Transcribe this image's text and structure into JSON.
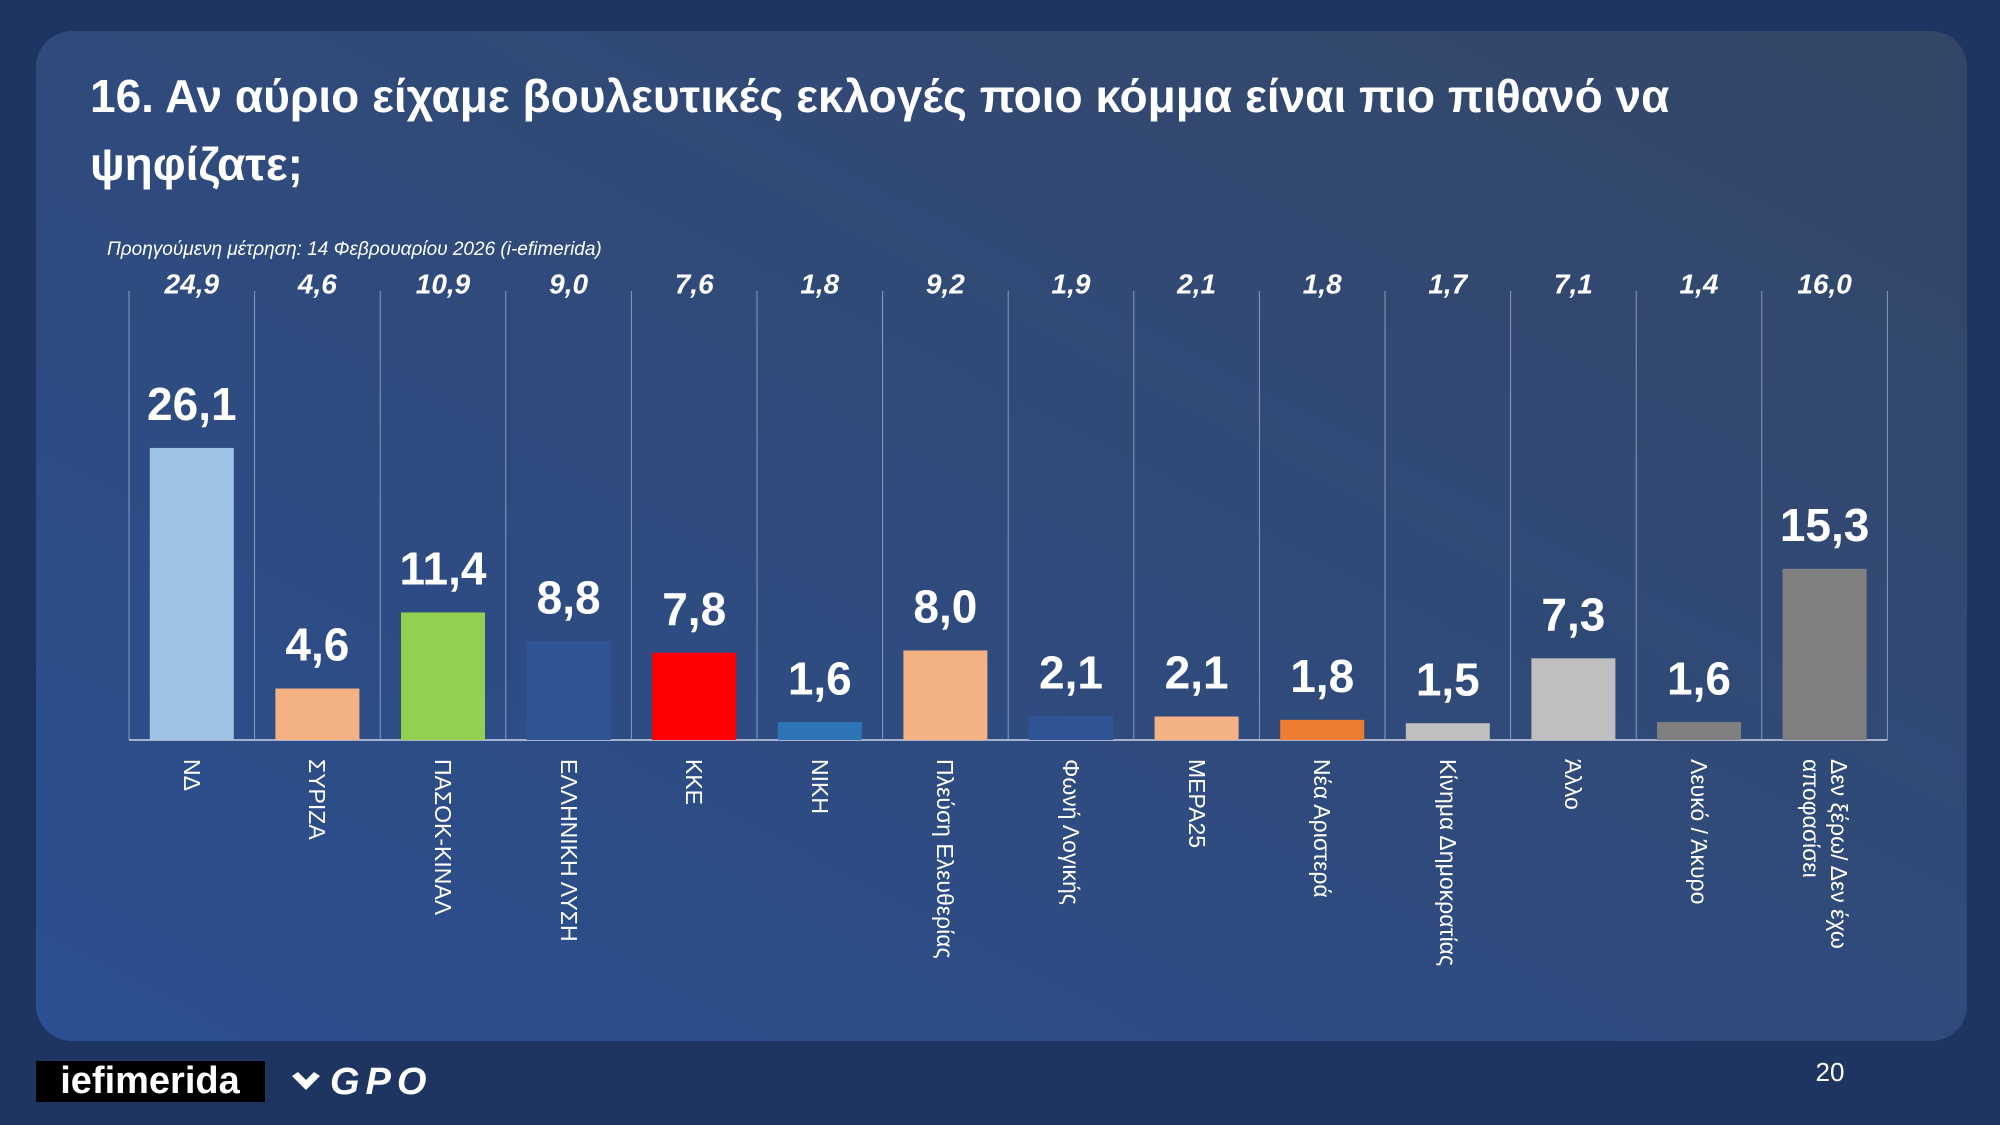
{
  "chart_data": {
    "type": "bar",
    "title": "16. Αν αύριο είχαμε βουλευτικές εκλογές ποιο κόμμα είναι πιο πιθανό να ψηφίζατε;",
    "subtitle": "Προηγούμενη μέτρηση: 14 Φεβρουαρίου 2026 (i-efimerida)",
    "categories": [
      "ΝΔ",
      "ΣΥΡΙΖΑ",
      "ΠΑΣΟΚ-ΚΙΝΑΛ",
      "ΕΛΛΗΝΙΚΗ ΛΥΣΗ",
      "ΚΚΕ",
      "ΝΙΚΗ",
      "Πλεύση Ελευθερίας",
      "Φωνή Λογικής",
      "ΜΕΡΑ25",
      "Νέα Αριστερά",
      "Κίνημα Δημοκρατίας",
      "Άλλο",
      "Λευκό / Άκυρο",
      "Δεν ξέρω/ Δεν έχω αποφασίσει"
    ],
    "values": [
      26.1,
      4.6,
      11.4,
      8.8,
      7.8,
      1.6,
      8.0,
      2.1,
      2.1,
      1.8,
      1.5,
      7.3,
      1.6,
      15.3
    ],
    "value_labels": [
      "26,1",
      "4,6",
      "11,4",
      "8,8",
      "7,8",
      "1,6",
      "8,0",
      "2,1",
      "2,1",
      "1,8",
      "1,5",
      "7,3",
      "1,6",
      "15,3"
    ],
    "colors": [
      "#9dc3e6",
      "#f4b183",
      "#92d050",
      "#2f5597",
      "#ff0000",
      "#2e75b6",
      "#f4b183",
      "#2f5597",
      "#f4b183",
      "#ed7d31",
      "#bfbfbf",
      "#bfbfbf",
      "#808080",
      "#808080"
    ],
    "previous_values": [
      24.9,
      4.6,
      10.9,
      9.0,
      7.6,
      1.8,
      9.2,
      1.9,
      2.1,
      1.8,
      1.7,
      7.1,
      1.4,
      16.0
    ],
    "previous_value_labels": [
      "24,9",
      "4,6",
      "10,9",
      "9,0",
      "7,6",
      "1,8",
      "9,2",
      "1,9",
      "2,1",
      "1,8",
      "1,7",
      "7,1",
      "1,4",
      "16,0"
    ]
  },
  "footer": {
    "logo_left": "iefimerida",
    "logo_right": "GPO",
    "page_number": "20"
  }
}
